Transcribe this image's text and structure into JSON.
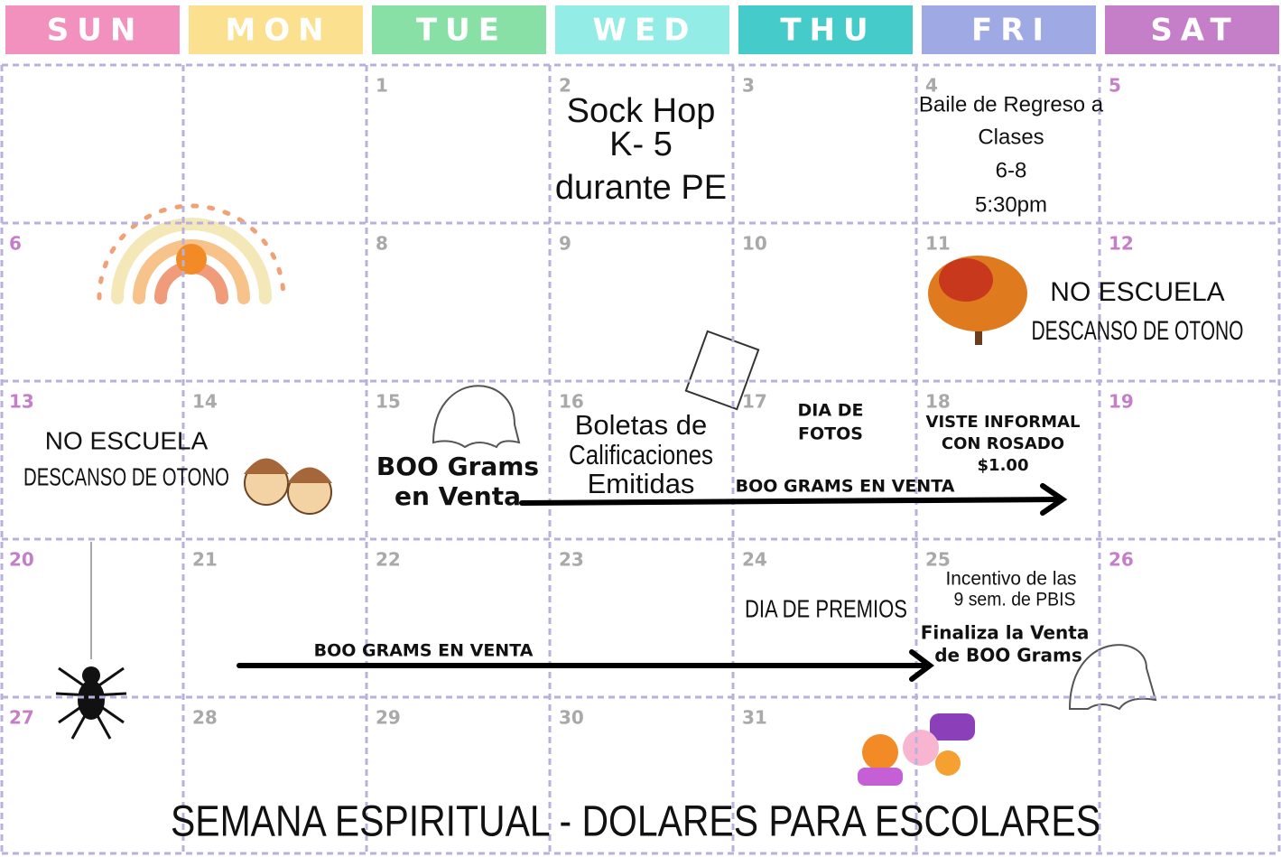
{
  "header": {
    "days": [
      {
        "label": "SUN",
        "color": "#f291bd"
      },
      {
        "label": "MON",
        "color": "#fbe08f"
      },
      {
        "label": "TUE",
        "color": "#88e0a6"
      },
      {
        "label": "WED",
        "color": "#94ece6"
      },
      {
        "label": "THU",
        "color": "#45cbc9"
      },
      {
        "label": "FRI",
        "color": "#9fa9e3"
      },
      {
        "label": "SAT",
        "color": "#c57fc9"
      }
    ]
  },
  "weeks": [
    [
      null,
      null,
      1,
      2,
      3,
      4,
      5
    ],
    [
      6,
      null,
      8,
      9,
      10,
      11,
      12
    ],
    [
      13,
      14,
      15,
      16,
      17,
      18,
      19
    ],
    [
      20,
      21,
      22,
      23,
      24,
      25,
      26
    ],
    [
      27,
      28,
      29,
      30,
      31,
      null,
      null
    ]
  ],
  "events": {
    "sock_hop": [
      "Sock Hop",
      "K- 5",
      "durante PE"
    ],
    "baile": [
      "Baile de Regreso a",
      "Clases",
      "6-8",
      "5:30pm"
    ],
    "no_escuela_1": [
      "NO ESCUELA",
      "DESCANSO DE OTONO"
    ],
    "no_escuela_2": [
      "NO ESCUELA",
      "DESCANSO DE OTONO"
    ],
    "boo_grams": [
      "BOO Grams",
      "en Venta"
    ],
    "boletas": [
      "Boletas de",
      "Calificaciones",
      "Emitidas"
    ],
    "fotos": [
      "DIA DE",
      "FOTOS"
    ],
    "viste": [
      "VISTE INFORMAL",
      "CON ROSADO",
      "$1.00"
    ],
    "venta_1": "BOO GRAMS EN VENTA",
    "venta_2": "BOO GRAMS EN VENTA",
    "premios": "DIA DE PREMIOS",
    "incentivo": [
      "Incentivo de las",
      "9 sem. de PBIS"
    ],
    "finaliza": [
      "Finaliza la Venta",
      "de BOO Grams"
    ]
  },
  "footer": "SEMANA ESPIRITUAL - DOLARES PARA ESCOLARES"
}
